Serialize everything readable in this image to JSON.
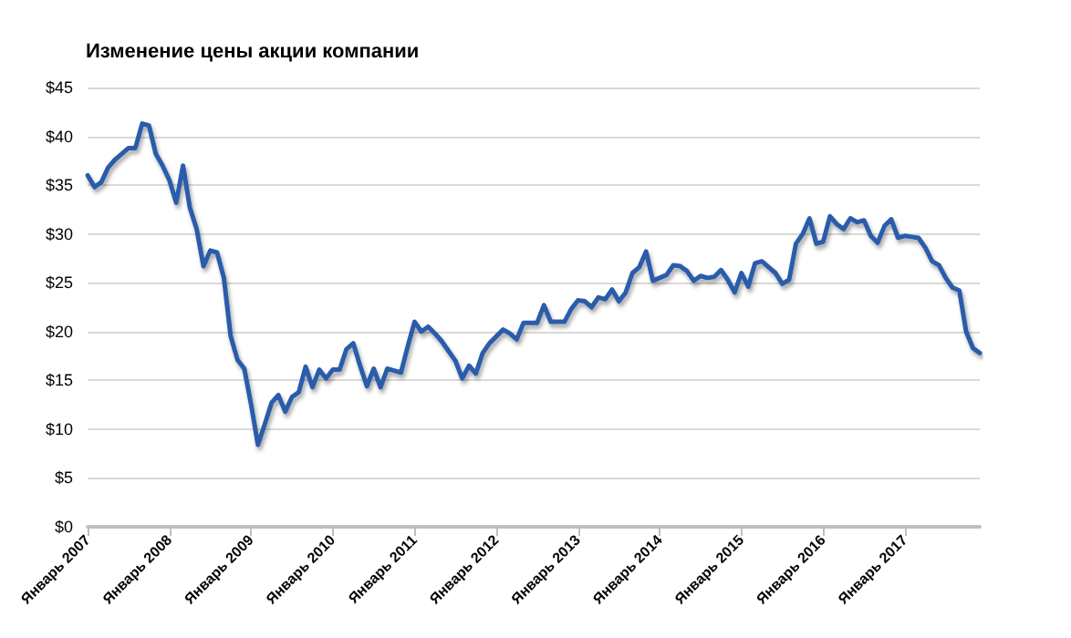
{
  "chart_data": {
    "type": "line",
    "title": "Изменение цены акции компании",
    "categories": [
      "Январь 2007",
      null,
      null,
      null,
      null,
      null,
      null,
      null,
      null,
      null,
      null,
      null,
      "Январь 2008",
      null,
      null,
      null,
      null,
      null,
      null,
      null,
      null,
      null,
      null,
      null,
      "Январь 2009",
      null,
      null,
      null,
      null,
      null,
      null,
      null,
      null,
      null,
      null,
      null,
      "Январь 2010",
      null,
      null,
      null,
      null,
      null,
      null,
      null,
      null,
      null,
      null,
      null,
      "Январь 2011",
      null,
      null,
      null,
      null,
      null,
      null,
      null,
      null,
      null,
      null,
      null,
      "Январь 2012",
      null,
      null,
      null,
      null,
      null,
      null,
      null,
      null,
      null,
      null,
      null,
      "Январь 2013",
      null,
      null,
      null,
      null,
      null,
      null,
      null,
      null,
      null,
      null,
      null,
      "Январь 2014",
      null,
      null,
      null,
      null,
      null,
      null,
      null,
      null,
      null,
      null,
      null,
      "Январь 2015",
      null,
      null,
      null,
      null,
      null,
      null,
      null,
      null,
      null,
      null,
      null,
      "Январь 2016",
      null,
      null,
      null,
      null,
      null,
      null,
      null,
      null,
      null,
      null,
      null,
      "Январь 2017",
      null,
      null,
      null,
      null,
      null,
      null,
      null,
      null,
      null,
      null,
      null
    ],
    "series": [
      {
        "color": "#2a5caa",
        "values": [
          36,
          34.8,
          35.3,
          36.8,
          37.6,
          38.2,
          38.8,
          38.8,
          41.3,
          41.1,
          38.2,
          37,
          35.5,
          33.2,
          37,
          32.7,
          30.5,
          26.7,
          28.3,
          28.1,
          25.5,
          19.5,
          17.1,
          16.2,
          12.5,
          8.4,
          10.5,
          12.7,
          13.5,
          11.8,
          13.3,
          13.8,
          16.4,
          14.3,
          16.1,
          15.2,
          16.1,
          16.1,
          18.2,
          18.8,
          16.5,
          14.4,
          16.2,
          14.3,
          16.2,
          16,
          15.8,
          18.5,
          21,
          20,
          20.5,
          19.8,
          19,
          18,
          17,
          15.2,
          16.5,
          15.7,
          17.8,
          18.8,
          19.5,
          20.2,
          19.8,
          19.2,
          20.9,
          20.9,
          20.9,
          22.7,
          21,
          21,
          21,
          22.3,
          23.2,
          23.1,
          22.5,
          23.5,
          23.3,
          24.3,
          23.1,
          24,
          26,
          26.6,
          28.2,
          25.2,
          25.5,
          25.8,
          26.8,
          26.7,
          26.2,
          25.2,
          25.7,
          25.5,
          25.6,
          26.3,
          25.3,
          24,
          26,
          24.6,
          27,
          27.2,
          26.6,
          26,
          24.9,
          25.3,
          29,
          30,
          31.6,
          29,
          29.2,
          31.8,
          31,
          30.5,
          31.6,
          31.2,
          31.4,
          29.8,
          29.1,
          30.8,
          31.5,
          29.6,
          29.8,
          29.7,
          29.6,
          28.6,
          27.2,
          26.8,
          25.5,
          24.5,
          24.2,
          20,
          18.3,
          17.8
        ]
      }
    ],
    "ylim": [
      0,
      45
    ],
    "yticks": [
      {
        "value": 0,
        "label": "$0"
      },
      {
        "value": 5,
        "label": "$5"
      },
      {
        "value": 10,
        "label": "$10"
      },
      {
        "value": 15,
        "label": "$15"
      },
      {
        "value": 20,
        "label": "$20"
      },
      {
        "value": 25,
        "label": "$25"
      },
      {
        "value": 30,
        "label": "$30"
      },
      {
        "value": 35,
        "label": "$35"
      },
      {
        "value": 40,
        "label": "$40"
      },
      {
        "value": 45,
        "label": "$45"
      }
    ],
    "grid": "y",
    "marker": "none",
    "line_style": "solid"
  }
}
